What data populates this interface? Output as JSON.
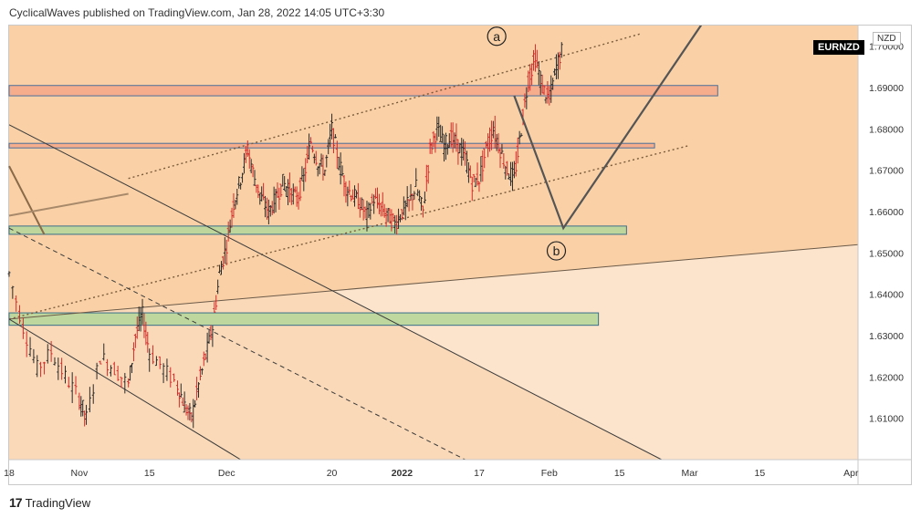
{
  "header": {
    "published": "CyclicalWaves published on TradingView.com, Jan 28, 2022 14:05 UTC+3:30"
  },
  "symbol": "EURNZD",
  "currency": "NZD",
  "footer": {
    "brand": "TradingView",
    "logo_glyph": "17"
  },
  "colors": {
    "bg_light": "#fbe3cc",
    "bg_dark": "#fad1a7",
    "resistance_zone": "#f5a88a",
    "support_zone": "#b7d69b",
    "bar_up": "#2a2a2a",
    "bar_down": "#d32b2b",
    "projection_line": "#555555"
  },
  "chart_data": {
    "type": "ohlc",
    "y_axis": {
      "ylim": [
        1.6,
        1.705
      ],
      "ticks": [
        "1.70000",
        "1.69000",
        "1.68000",
        "1.67000",
        "1.66000",
        "1.65000",
        "1.64000",
        "1.63000",
        "1.62000",
        "1.61000"
      ]
    },
    "x_axis": {
      "xlim": [
        0,
        121
      ],
      "ticks": [
        {
          "label": "18",
          "x": 0
        },
        {
          "label": "Nov",
          "x": 10
        },
        {
          "label": "15",
          "x": 20
        },
        {
          "label": "Dec",
          "x": 31
        },
        {
          "label": "20",
          "x": 46
        },
        {
          "label": "2022",
          "x": 56
        },
        {
          "label": "17",
          "x": 67
        },
        {
          "label": "Feb",
          "x": 77
        },
        {
          "label": "15",
          "x": 87
        },
        {
          "label": "Mar",
          "x": 97
        },
        {
          "label": "15",
          "x": 107
        },
        {
          "label": "Apr",
          "x": 120
        }
      ]
    },
    "price_path": [
      [
        0,
        1.645
      ],
      [
        2,
        1.632
      ],
      [
        4,
        1.622
      ],
      [
        6,
        1.626
      ],
      [
        8,
        1.62
      ],
      [
        10,
        1.615
      ],
      [
        11,
        1.61
      ],
      [
        13,
        1.625
      ],
      [
        15,
        1.622
      ],
      [
        17,
        1.618
      ],
      [
        18,
        1.63
      ],
      [
        19,
        1.635
      ],
      [
        20,
        1.626
      ],
      [
        22,
        1.622
      ],
      [
        24,
        1.618
      ],
      [
        25,
        1.613
      ],
      [
        26,
        1.61
      ],
      [
        27,
        1.618
      ],
      [
        28,
        1.625
      ],
      [
        29,
        1.632
      ],
      [
        30,
        1.645
      ],
      [
        31,
        1.652
      ],
      [
        32,
        1.662
      ],
      [
        33,
        1.668
      ],
      [
        34,
        1.675
      ],
      [
        35,
        1.668
      ],
      [
        36,
        1.663
      ],
      [
        37,
        1.66
      ],
      [
        38,
        1.663
      ],
      [
        39,
        1.667
      ],
      [
        40,
        1.665
      ],
      [
        41,
        1.663
      ],
      [
        42,
        1.668
      ],
      [
        43,
        1.677
      ],
      [
        44,
        1.672
      ],
      [
        45,
        1.67
      ],
      [
        46,
        1.68
      ],
      [
        47,
        1.672
      ],
      [
        48,
        1.666
      ],
      [
        49,
        1.664
      ],
      [
        50,
        1.662
      ],
      [
        51,
        1.659
      ],
      [
        52,
        1.663
      ],
      [
        53,
        1.661
      ],
      [
        54,
        1.659
      ],
      [
        55,
        1.657
      ],
      [
        56,
        1.66
      ],
      [
        57,
        1.662
      ],
      [
        58,
        1.666
      ],
      [
        59,
        1.66
      ],
      [
        60,
        1.675
      ],
      [
        61,
        1.68
      ],
      [
        62,
        1.676
      ],
      [
        63,
        1.678
      ],
      [
        64,
        1.676
      ],
      [
        65,
        1.673
      ],
      [
        66,
        1.667
      ],
      [
        67,
        1.668
      ],
      [
        68,
        1.675
      ],
      [
        69,
        1.68
      ],
      [
        70,
        1.675
      ],
      [
        71,
        1.67
      ],
      [
        72,
        1.668
      ],
      [
        73,
        1.68
      ],
      [
        74,
        1.692
      ],
      [
        75,
        1.697
      ],
      [
        76,
        1.69
      ],
      [
        77,
        1.687
      ],
      [
        78,
        1.695
      ],
      [
        79,
        1.7
      ]
    ],
    "zones": [
      {
        "y0": 1.688,
        "y1": 1.6905,
        "x0": 0,
        "x1": 101,
        "kind": "resistance"
      },
      {
        "y0": 1.6755,
        "y1": 1.6765,
        "x0": 0,
        "x1": 92,
        "kind": "resistance"
      },
      {
        "y0": 1.6545,
        "y1": 1.6565,
        "x0": 0,
        "x1": 88,
        "kind": "support"
      },
      {
        "y0": 1.6325,
        "y1": 1.6355,
        "x0": 0,
        "x1": 84,
        "kind": "support"
      }
    ],
    "trendlines": [
      {
        "from": [
          17,
          1.668
        ],
        "to": [
          90,
          1.703
        ],
        "style": "dotted"
      },
      {
        "from": [
          0,
          1.634
        ],
        "to": [
          97,
          1.676
        ],
        "style": "dotted"
      },
      {
        "from": [
          0,
          1.634
        ],
        "to": [
          121,
          1.652
        ],
        "style": "solid-thin"
      },
      {
        "from": [
          0,
          1.681
        ],
        "to": [
          93,
          1.6
        ],
        "style": "solid-thin"
      },
      {
        "from": [
          0,
          1.656
        ],
        "to": [
          65,
          1.6
        ],
        "style": "dashed"
      },
      {
        "from": [
          0,
          1.634
        ],
        "to": [
          33,
          1.6
        ],
        "style": "solid-thin"
      }
    ],
    "projection": [
      [
        72,
        1.688
      ],
      [
        79,
        1.656
      ],
      [
        101,
        1.711
      ]
    ],
    "wave_labels": [
      {
        "text": "a",
        "x": 69.5,
        "y": 1.7024
      },
      {
        "text": "b",
        "x": 78,
        "y": 1.6505
      }
    ]
  }
}
